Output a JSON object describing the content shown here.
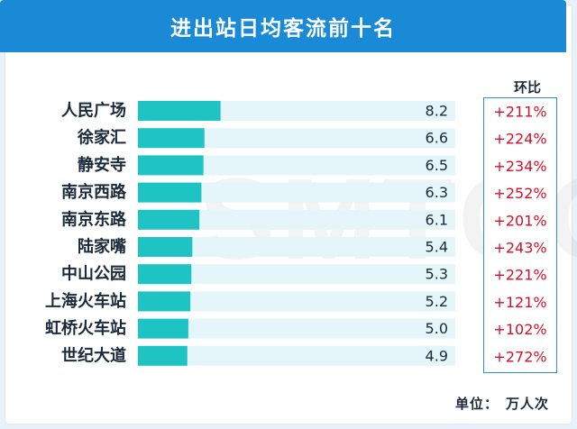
{
  "title": "进出站日均客流前十名",
  "watermark": "SMTCC",
  "ratio_header": "环比",
  "unit_label": "单位：",
  "unit_value": "万人次",
  "colors": {
    "banner": "#1a8ad6",
    "bar": "#1ec4c4",
    "track": "#e4f6fa",
    "ratio_text": "#d1112b",
    "label_text": "#1b2a3a"
  },
  "chart_data": {
    "type": "bar",
    "orientation": "horizontal",
    "categories": [
      "人民广场",
      "徐家汇",
      "静安寺",
      "南京西路",
      "南京东路",
      "陆家嘴",
      "中山公园",
      "上海火车站",
      "虹桥火车站",
      "世纪大道"
    ],
    "values": [
      8.2,
      6.6,
      6.5,
      6.3,
      6.1,
      5.4,
      5.3,
      5.2,
      5.0,
      4.9
    ],
    "value_labels": [
      "8.2",
      "6.6",
      "6.5",
      "6.3",
      "6.1",
      "5.4",
      "5.3",
      "5.2",
      "5.0",
      "4.9"
    ],
    "ratios": [
      "+211%",
      "+224%",
      "+234%",
      "+252%",
      "+201%",
      "+243%",
      "+221%",
      "+121%",
      "+102%",
      "+272%"
    ],
    "xlim": [
      0,
      31.5
    ]
  }
}
